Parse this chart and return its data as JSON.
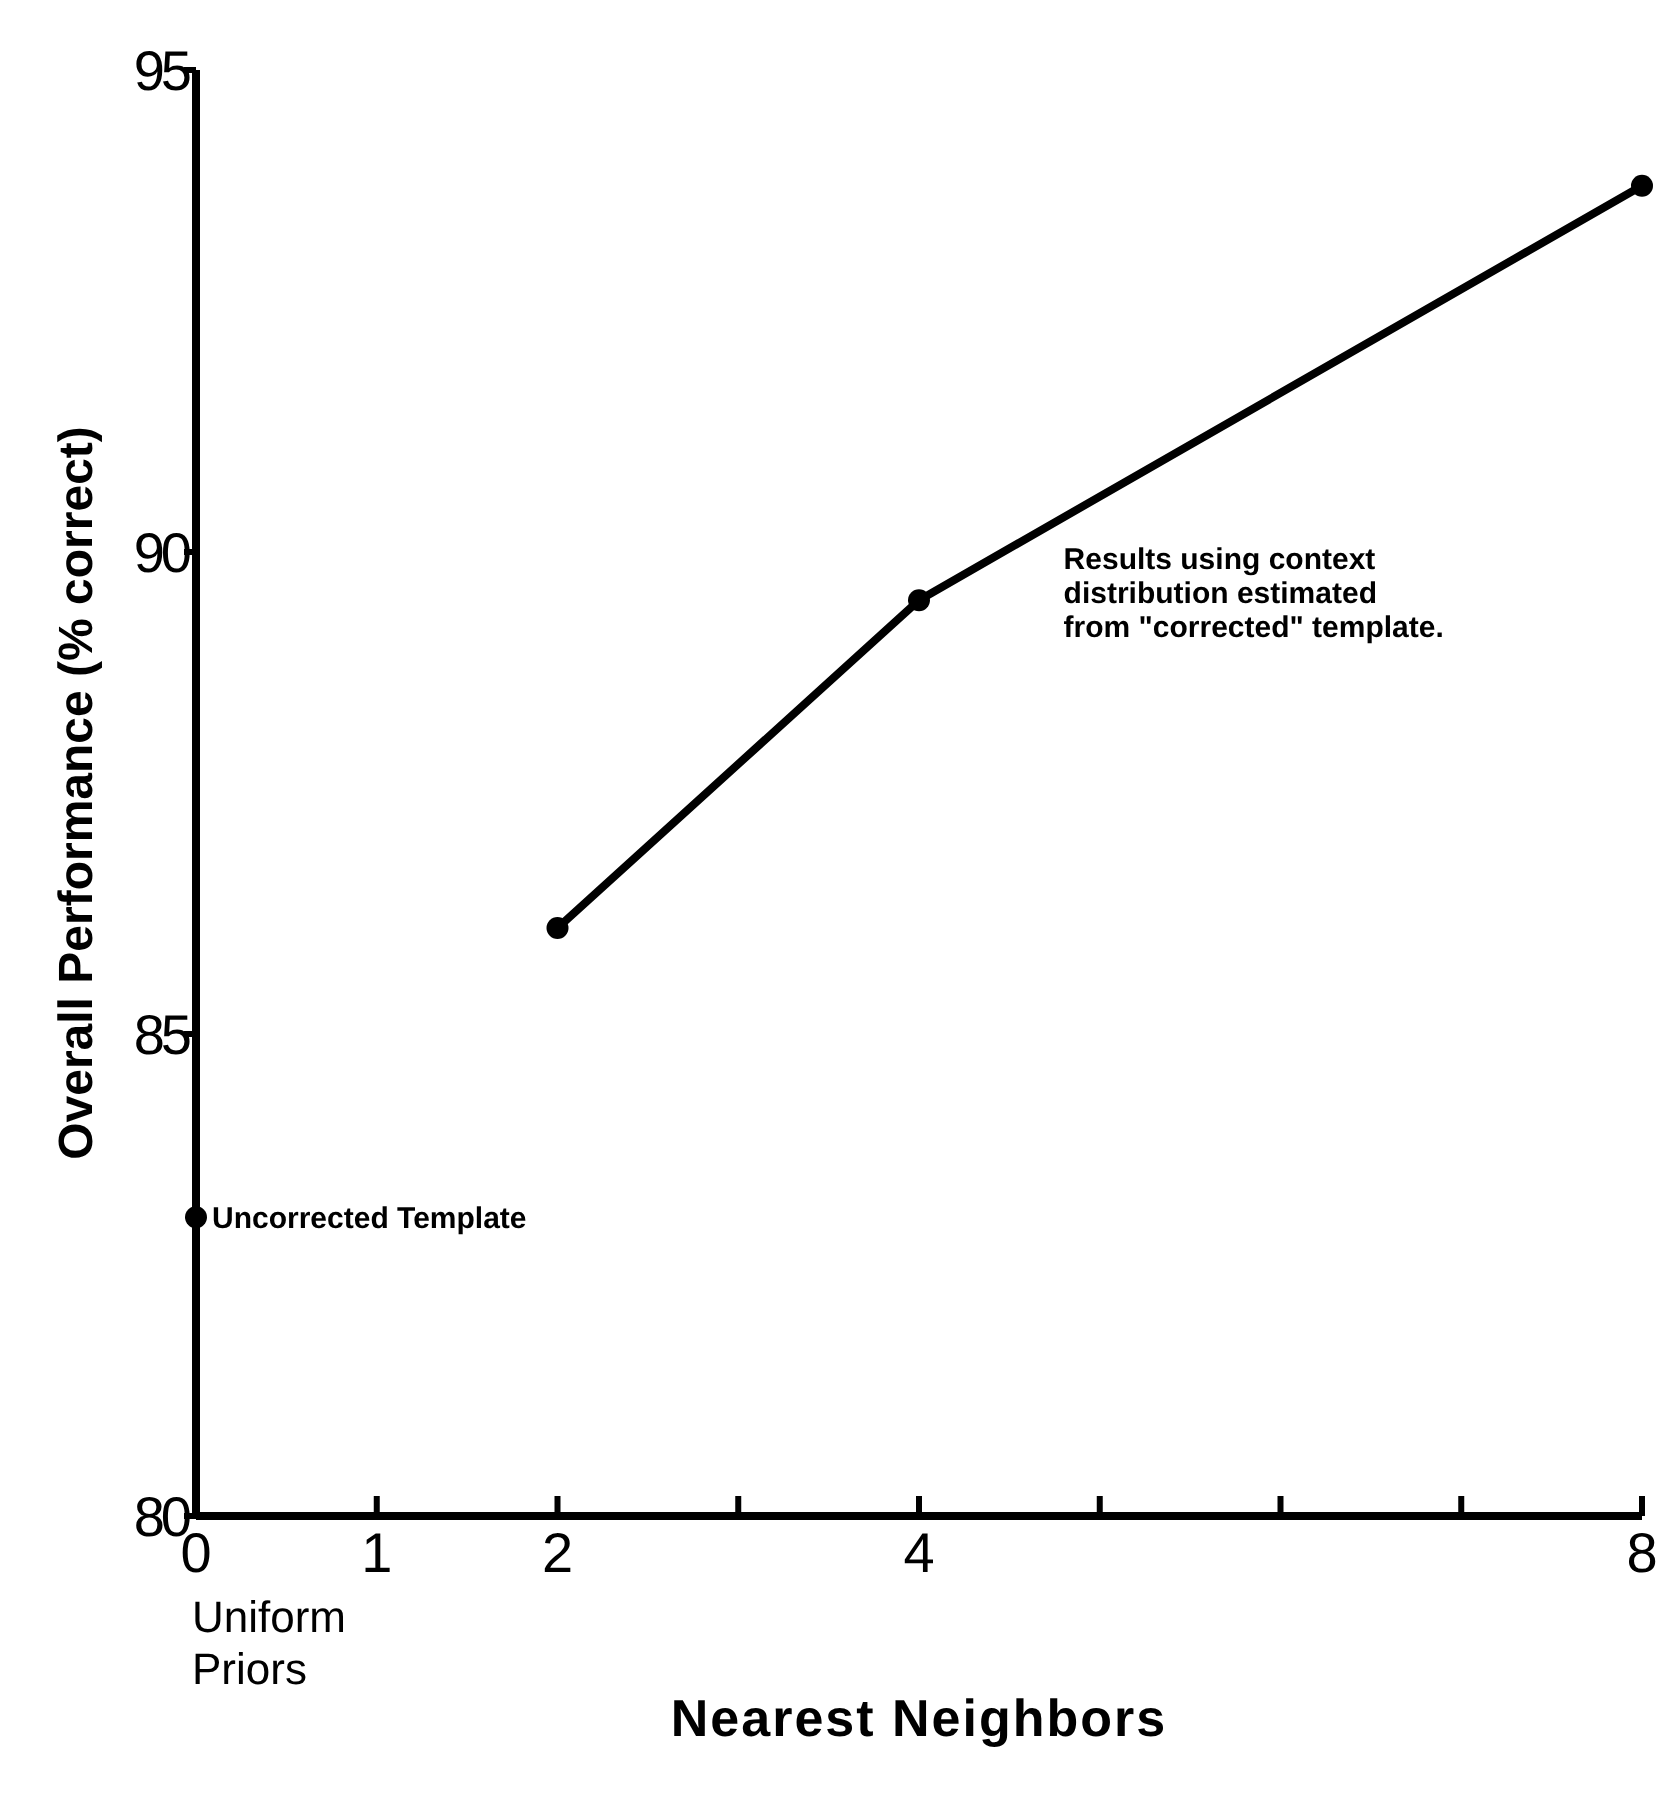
{
  "chart_data": {
    "type": "line",
    "xlabel": "Nearest Neighbors",
    "ylabel": "Overall Performance (% correct)",
    "xlim": [
      0,
      8
    ],
    "ylim": [
      80,
      95
    ],
    "xticks": [
      0,
      1,
      2,
      {
        "value": 3,
        "label": null
      },
      4,
      {
        "value": 5,
        "label": null
      },
      {
        "value": 6,
        "label": null
      },
      {
        "value": 7,
        "label": null
      },
      8
    ],
    "yticks": [
      80,
      85,
      90,
      95
    ],
    "marker": "circle",
    "line_style": "solid",
    "grid": false,
    "series": [
      {
        "type": "scatter",
        "color": "#000000",
        "x": [
          0
        ],
        "values": [
          83.1
        ]
      },
      {
        "color": "#000000",
        "x": [
          2,
          4,
          8
        ],
        "values": [
          86.1,
          89.5,
          93.8
        ]
      }
    ],
    "annotations": [
      {
        "text": "Uncorrected Template",
        "x": 0,
        "y": 83.1
      },
      "Results using context distribution estimated from \"corrected\" template.",
      "Uniform Priors"
    ]
  }
}
